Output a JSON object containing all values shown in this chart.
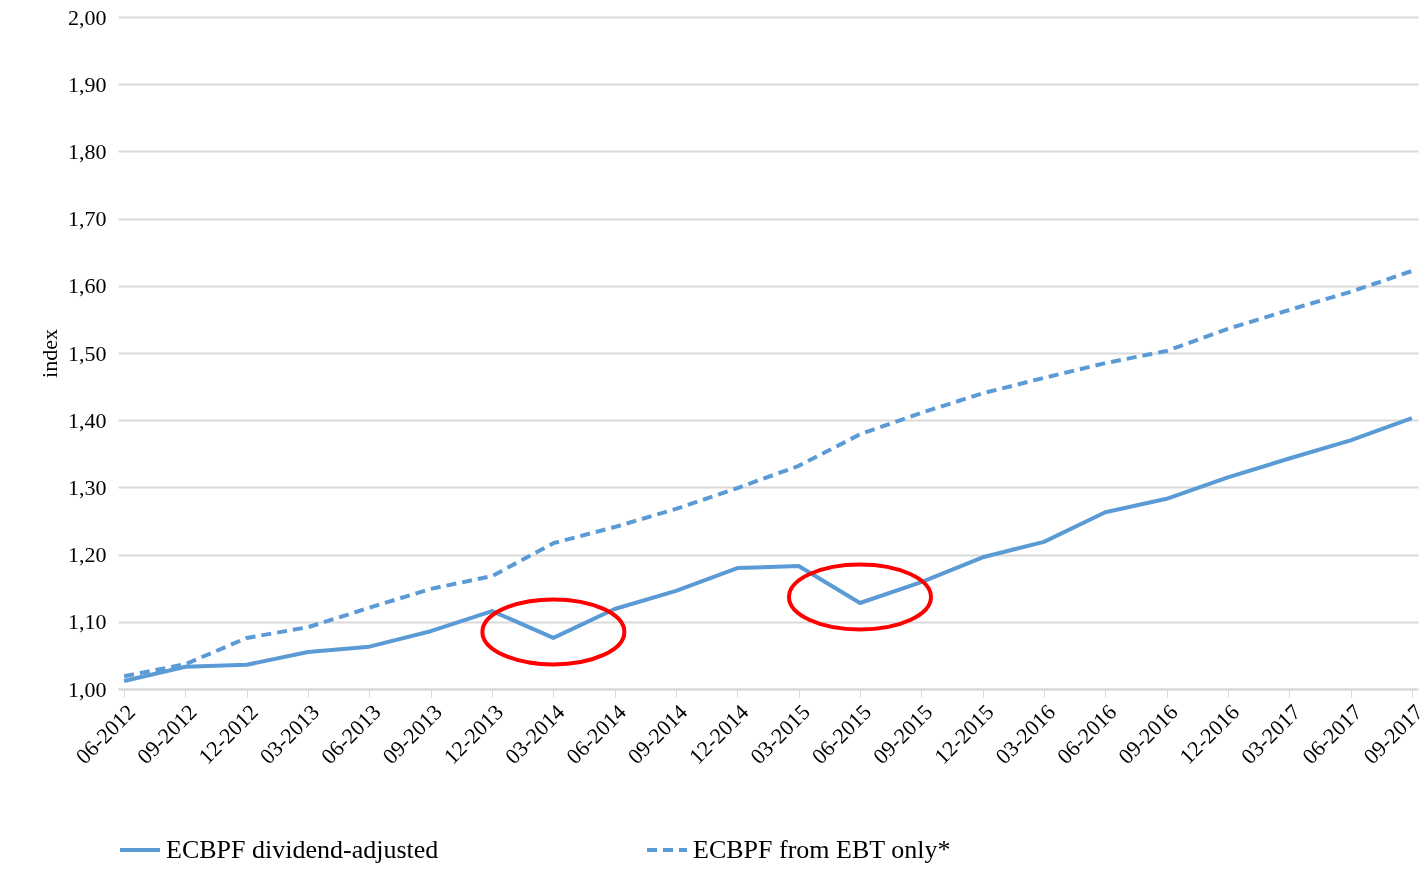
{
  "chart_data": {
    "type": "line",
    "ylabel": "index",
    "categories": [
      "06-2012",
      "09-2012",
      "12-2012",
      "03-2013",
      "06-2013",
      "09-2013",
      "12-2013",
      "03-2014",
      "06-2014",
      "09-2014",
      "12-2014",
      "03-2015",
      "06-2015",
      "09-2015",
      "12-2015",
      "03-2016",
      "06-2016",
      "09-2016",
      "12-2016",
      "03-2017",
      "06-2017",
      "09-2017"
    ],
    "series": [
      {
        "name": "ECBPF dividend-adjusted",
        "color": "#5b9bd5",
        "line_style": "solid",
        "values": [
          1.012,
          1.033,
          1.036,
          1.055,
          1.063,
          1.086,
          1.116,
          1.076,
          1.119,
          1.146,
          1.18,
          1.183,
          1.128,
          1.159,
          1.196,
          1.219,
          1.263,
          1.283,
          1.315,
          1.343,
          1.37,
          1.403
        ]
      },
      {
        "name": "ECBPF from EBT only*",
        "color": "#5b9bd5",
        "line_style": "dashed",
        "values": [
          1.019,
          1.037,
          1.076,
          1.092,
          1.121,
          1.149,
          1.168,
          1.217,
          1.241,
          1.268,
          1.299,
          1.332,
          1.379,
          1.411,
          1.44,
          1.463,
          1.485,
          1.503,
          1.536,
          1.564,
          1.591,
          1.622
        ]
      }
    ],
    "ylim": [
      1,
      2
    ],
    "yticks": [
      {
        "value": 1,
        "label": "1,00"
      },
      {
        "value": 1.1,
        "label": "1,10"
      },
      {
        "value": 1.2,
        "label": "1,20"
      },
      {
        "value": 1.3,
        "label": "1,30"
      },
      {
        "value": 1.4,
        "label": "1,40"
      },
      {
        "value": 1.5,
        "label": "1,50"
      },
      {
        "value": 1.6,
        "label": "1,60"
      },
      {
        "value": 1.7,
        "label": "1,70"
      },
      {
        "value": 1.8,
        "label": "1,80"
      },
      {
        "value": 1.9,
        "label": "1,90"
      },
      {
        "value": 2,
        "label": "2,00"
      }
    ],
    "grid": "y",
    "legend": "bottom"
  }
}
